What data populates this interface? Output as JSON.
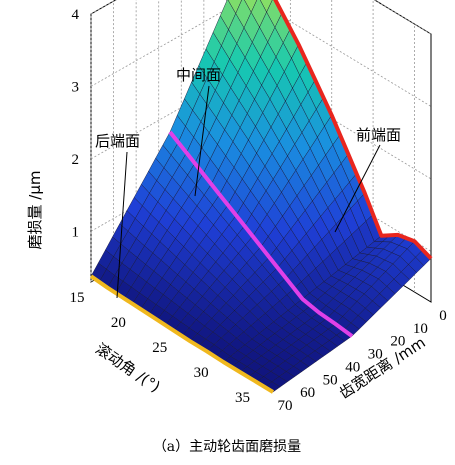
{
  "chart_data": {
    "type": "surface3d",
    "caption": "（a）主动轮齿面磨损量",
    "zlabel": "磨损量 /μm",
    "xlabel": "滚动角 /(°)",
    "ylabel": "齿宽距离 /mm",
    "x_ticks": [
      "15",
      "20",
      "25",
      "30",
      "35"
    ],
    "y_ticks": [
      "0",
      "10",
      "20",
      "30",
      "40",
      "50",
      "60",
      "70"
    ],
    "z_ticks": [
      "1",
      "2",
      "3",
      "4"
    ],
    "xlim": [
      15,
      37
    ],
    "ylim": [
      0,
      70
    ],
    "zlim": [
      0.3,
      4
    ],
    "annotations": {
      "front": "前端面",
      "middle": "中间面",
      "rear": "后端面"
    },
    "edge_curves": {
      "front_face_y0": {
        "x": [
          15,
          17,
          19,
          21,
          23,
          25,
          27,
          29,
          31,
          33,
          35,
          37
        ],
        "z": [
          3.65,
          3.35,
          3.05,
          2.75,
          2.4,
          2.05,
          1.65,
          1.25,
          0.8,
          0.95,
          1.0,
          0.9
        ]
      },
      "middle_face_y35": {
        "x": [
          15,
          17,
          19,
          21,
          23,
          25,
          27,
          29,
          31,
          33,
          35,
          37
        ],
        "z": [
          1.75,
          1.6,
          1.45,
          1.3,
          1.15,
          1.0,
          0.85,
          0.7,
          0.55,
          0.5,
          0.48,
          0.45
        ]
      },
      "rear_face_y70": {
        "x": [
          15,
          17,
          19,
          21,
          23,
          25,
          27,
          29,
          31,
          33,
          35,
          37
        ],
        "z": [
          0.38,
          0.36,
          0.35,
          0.34,
          0.33,
          0.32,
          0.31,
          0.31,
          0.3,
          0.3,
          0.3,
          0.3
        ]
      }
    },
    "colors": {
      "front_line": "#e8261e",
      "middle_line": "#e040e8",
      "rear_line": "#f0b81e",
      "colormap": [
        "#10147c",
        "#1f3fd6",
        "#1a8fe0",
        "#17c9b0",
        "#8fe060",
        "#f4e23a"
      ]
    }
  }
}
